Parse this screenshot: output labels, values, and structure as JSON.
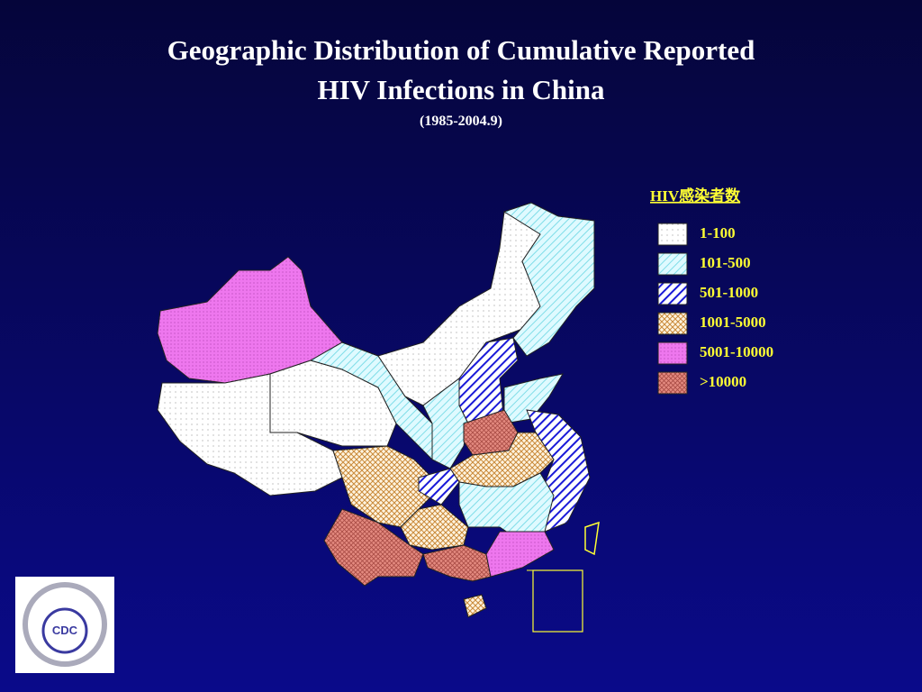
{
  "header": {
    "title": [
      "Geographic Distribution of Cumulative Reported",
      "HIV Infections in China"
    ],
    "subtitle": "(1985-2004.9)"
  },
  "legend": {
    "title": "HIV感染者数",
    "items": [
      "1-100",
      "101-500",
      "501-1000",
      "1001-5000",
      "5001-10000",
      ">10000"
    ]
  },
  "logo": {
    "text": "CDC"
  }
}
